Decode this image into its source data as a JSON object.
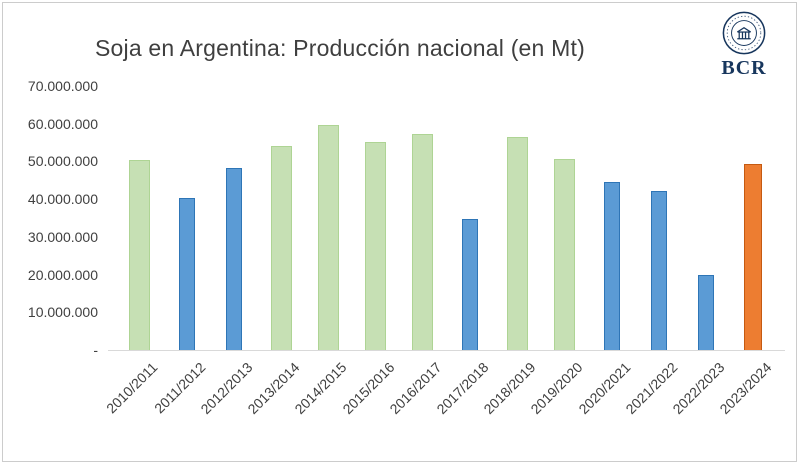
{
  "frame": {
    "border_color": "#cccccc",
    "background": "#ffffff"
  },
  "header": {
    "title": "Soja en Argentina: Producción nacional (en Mt)",
    "logo": {
      "text": "BCR",
      "color": "#17365d"
    }
  },
  "chart_data": {
    "type": "bar",
    "title": "Soja en Argentina: Producción nacional (en Mt)",
    "xlabel": "",
    "ylabel": "",
    "ylim": [
      0,
      70000000
    ],
    "grid": false,
    "legend": "none",
    "y_ticks": [
      "70.000.000",
      "60.000.000",
      "50.000.000",
      "40.000.000",
      "30.000.000",
      "20.000.000",
      "10.000.000",
      "-"
    ],
    "categories": [
      "2010/2011",
      "2011/2012",
      "2012/2013",
      "2013/2014",
      "2014/2015",
      "2015/2016",
      "2016/2017",
      "2017/2018",
      "2018/2019",
      "2019/2020",
      "2020/2021",
      "2021/2022",
      "2022/2023",
      "2023/2024"
    ],
    "values": [
      50500000,
      40500000,
      48400000,
      54200000,
      60000000,
      55400000,
      57400000,
      35000000,
      56600000,
      50800000,
      44800000,
      42300000,
      20000000,
      49600000
    ],
    "colors": [
      "green",
      "blue",
      "blue",
      "green",
      "green",
      "green",
      "green",
      "blue",
      "green",
      "green",
      "blue",
      "blue",
      "blue",
      "orange"
    ],
    "color_map": {
      "green": {
        "fill": "#c6e0b4",
        "border": "#aed494",
        "width": 21
      },
      "blue": {
        "fill": "#5b9bd5",
        "border": "#2e75b6",
        "width": 16
      },
      "orange": {
        "fill": "#ed7d31",
        "border": "#c55a11",
        "width": 18
      }
    }
  }
}
